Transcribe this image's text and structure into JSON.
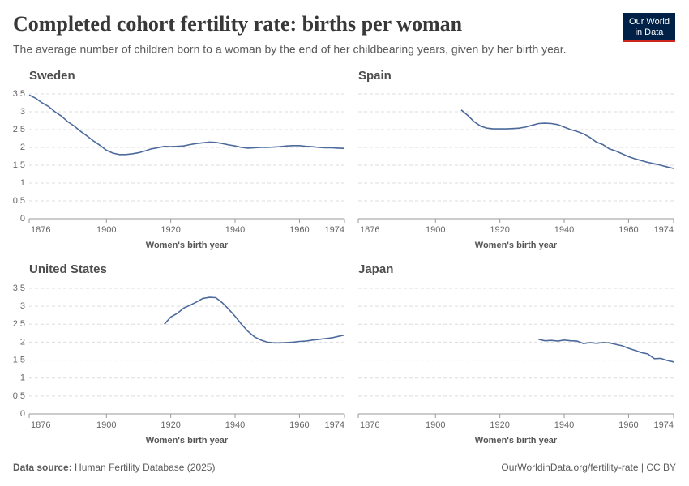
{
  "title": "Completed cohort fertility rate: births per woman",
  "subtitle": "The average number of children born to a woman by the end of her childbearing years, given by her birth year.",
  "logo": [
    "Our World",
    "in Data"
  ],
  "source_label": "Data source:",
  "source": "Human Fertility Database (2025)",
  "footer_right": "OurWorldinData.org/fertility-rate | CC BY",
  "chart_data": [
    {
      "type": "line",
      "title": "Sweden",
      "x_label": "Women's birth year",
      "color": "#4c6a9c",
      "grid": true,
      "xlim": [
        1876,
        1974
      ],
      "xticks": [
        1876,
        1900,
        1920,
        1940,
        1960,
        1974
      ],
      "ylim": [
        0,
        3.5
      ],
      "yticks": [
        0,
        0.5,
        1,
        1.5,
        2,
        2.5,
        3,
        3.5
      ],
      "x": [
        1876,
        1878,
        1880,
        1882,
        1884,
        1886,
        1888,
        1890,
        1892,
        1894,
        1896,
        1898,
        1900,
        1902,
        1904,
        1906,
        1908,
        1910,
        1912,
        1914,
        1916,
        1918,
        1920,
        1922,
        1924,
        1926,
        1928,
        1930,
        1932,
        1934,
        1936,
        1938,
        1940,
        1942,
        1944,
        1946,
        1948,
        1950,
        1952,
        1954,
        1956,
        1958,
        1960,
        1962,
        1964,
        1966,
        1968,
        1970,
        1972,
        1974
      ],
      "values": [
        3.47,
        3.38,
        3.25,
        3.15,
        3.0,
        2.88,
        2.72,
        2.6,
        2.45,
        2.32,
        2.18,
        2.06,
        1.92,
        1.84,
        1.8,
        1.8,
        1.82,
        1.85,
        1.9,
        1.96,
        1.99,
        2.03,
        2.02,
        2.03,
        2.04,
        2.08,
        2.11,
        2.13,
        2.15,
        2.14,
        2.11,
        2.07,
        2.04,
        2.0,
        1.98,
        1.99,
        2.0,
        2.0,
        2.01,
        2.02,
        2.04,
        2.05,
        2.05,
        2.03,
        2.02,
        2.0,
        1.99,
        1.99,
        1.98,
        1.97
      ]
    },
    {
      "type": "line",
      "title": "Spain",
      "x_label": "Women's birth year",
      "color": "#4c6a9c",
      "grid": true,
      "xlim": [
        1876,
        1974
      ],
      "xticks": [
        1876,
        1900,
        1920,
        1940,
        1960,
        1974
      ],
      "ylim": [
        0,
        3.5
      ],
      "yticks": [
        0,
        0.5,
        1,
        1.5,
        2,
        2.5,
        3,
        3.5
      ],
      "x": [
        1908,
        1910,
        1912,
        1914,
        1916,
        1918,
        1920,
        1922,
        1924,
        1926,
        1928,
        1930,
        1932,
        1934,
        1936,
        1938,
        1940,
        1942,
        1944,
        1946,
        1948,
        1950,
        1952,
        1954,
        1956,
        1958,
        1960,
        1962,
        1964,
        1966,
        1968,
        1970,
        1972,
        1974
      ],
      "values": [
        3.05,
        2.9,
        2.72,
        2.6,
        2.54,
        2.52,
        2.52,
        2.52,
        2.53,
        2.54,
        2.57,
        2.62,
        2.67,
        2.68,
        2.67,
        2.64,
        2.57,
        2.5,
        2.45,
        2.38,
        2.28,
        2.15,
        2.08,
        1.96,
        1.9,
        1.82,
        1.74,
        1.68,
        1.63,
        1.58,
        1.54,
        1.5,
        1.45,
        1.41
      ]
    },
    {
      "type": "line",
      "title": "United States",
      "x_label": "Women's birth year",
      "color": "#4c6a9c",
      "grid": true,
      "xlim": [
        1876,
        1974
      ],
      "xticks": [
        1876,
        1900,
        1920,
        1940,
        1960,
        1974
      ],
      "ylim": [
        0,
        3.5
      ],
      "yticks": [
        0,
        0.5,
        1,
        1.5,
        2,
        2.5,
        3,
        3.5
      ],
      "x": [
        1918,
        1920,
        1922,
        1924,
        1926,
        1928,
        1930,
        1932,
        1934,
        1936,
        1938,
        1940,
        1942,
        1944,
        1946,
        1948,
        1950,
        1952,
        1954,
        1956,
        1958,
        1960,
        1962,
        1964,
        1966,
        1968,
        1970,
        1972,
        1974
      ],
      "values": [
        2.5,
        2.7,
        2.8,
        2.95,
        3.03,
        3.12,
        3.22,
        3.25,
        3.24,
        3.1,
        2.92,
        2.72,
        2.5,
        2.3,
        2.15,
        2.06,
        2.0,
        1.98,
        1.98,
        1.99,
        2.0,
        2.02,
        2.03,
        2.06,
        2.08,
        2.1,
        2.12,
        2.16,
        2.2
      ]
    },
    {
      "type": "line",
      "title": "Japan",
      "x_label": "Women's birth year",
      "color": "#4c6a9c",
      "grid": true,
      "xlim": [
        1876,
        1974
      ],
      "xticks": [
        1876,
        1900,
        1920,
        1940,
        1960,
        1974
      ],
      "ylim": [
        0,
        3.5
      ],
      "yticks": [
        0,
        0.5,
        1,
        1.5,
        2,
        2.5,
        3,
        3.5
      ],
      "x": [
        1932,
        1934,
        1936,
        1938,
        1940,
        1942,
        1944,
        1946,
        1948,
        1950,
        1952,
        1954,
        1956,
        1958,
        1960,
        1962,
        1964,
        1966,
        1968,
        1970,
        1972,
        1974
      ],
      "values": [
        2.08,
        2.04,
        2.05,
        2.03,
        2.06,
        2.04,
        2.03,
        1.96,
        1.99,
        1.97,
        1.99,
        1.98,
        1.94,
        1.9,
        1.83,
        1.77,
        1.71,
        1.67,
        1.54,
        1.55,
        1.49,
        1.45
      ]
    }
  ]
}
